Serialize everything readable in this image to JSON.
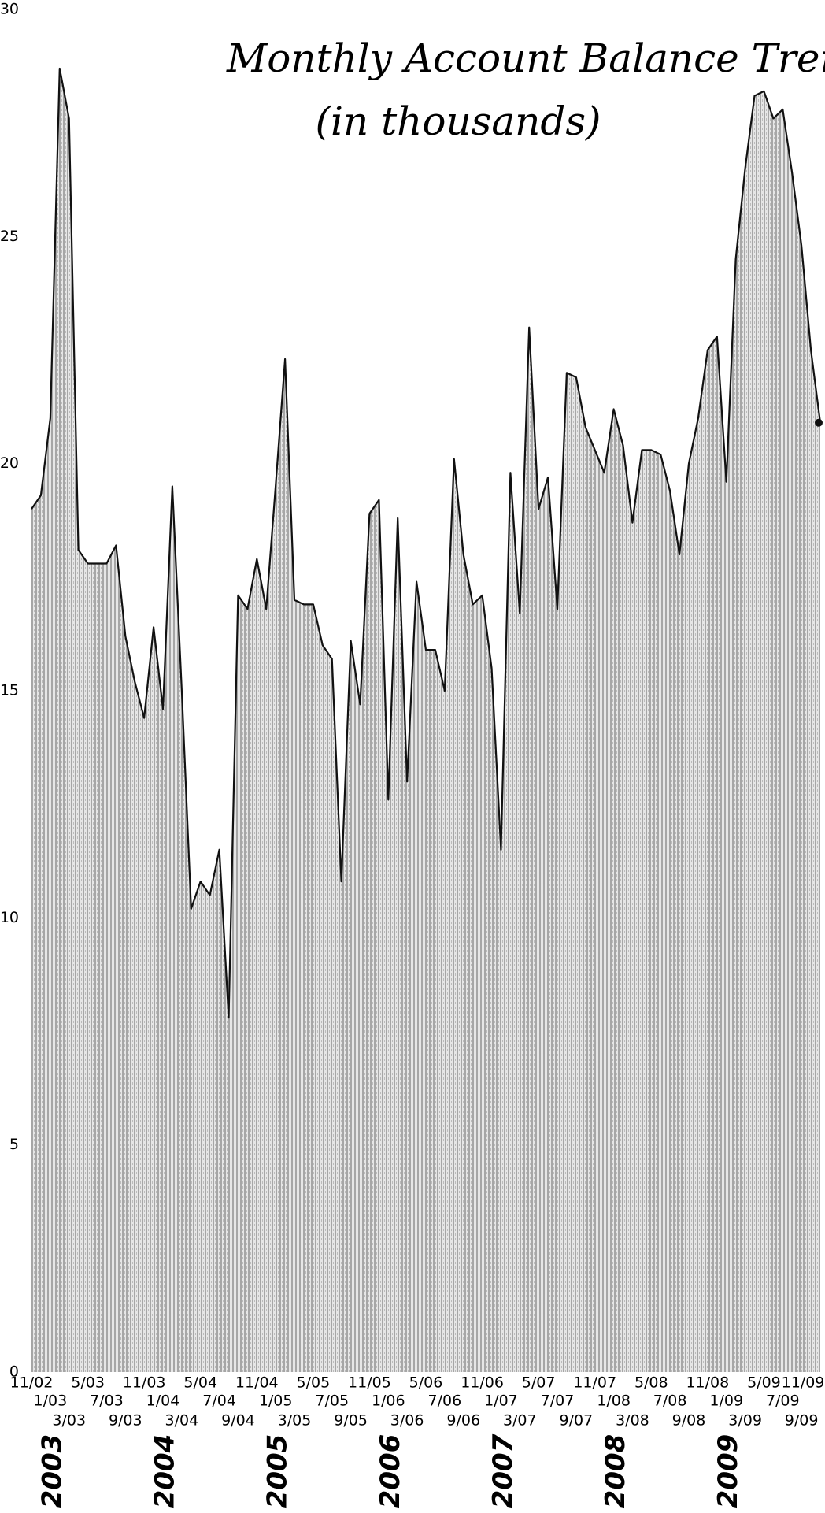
{
  "chart_data": {
    "type": "area",
    "title": "Monthly Account Balance Trend",
    "subtitle": "(in thousands)",
    "categories": [
      "11/02",
      null,
      "1/03",
      null,
      "3/03",
      null,
      "5/03",
      null,
      "7/03",
      null,
      "9/03",
      null,
      "11/03",
      null,
      "1/04",
      null,
      "3/04",
      null,
      "5/04",
      null,
      "7/04",
      null,
      "9/04",
      null,
      "11/04",
      null,
      "1/05",
      null,
      "3/05",
      null,
      "5/05",
      null,
      "7/05",
      null,
      "9/05",
      null,
      "11/05",
      null,
      "1/06",
      null,
      "3/06",
      null,
      "5/06",
      null,
      "7/06",
      null,
      "9/06",
      null,
      "11/06",
      null,
      "1/07",
      null,
      "3/07",
      null,
      "5/07",
      null,
      "7/07",
      null,
      "9/07",
      null,
      "11/07",
      null,
      "1/08",
      null,
      "3/08",
      null,
      "5/08",
      null,
      "7/08",
      null,
      "9/08",
      null,
      "11/08",
      null,
      "1/09",
      null,
      "3/09",
      null,
      "5/09",
      null,
      "7/09",
      null,
      "9/09",
      null,
      "11/09"
    ],
    "values": [
      19,
      19.3,
      21,
      28.7,
      27.6,
      18.1,
      17.8,
      17.8,
      17.8,
      18.2,
      16.2,
      15.2,
      14.4,
      16.4,
      14.6,
      19.5,
      15,
      10.2,
      10.8,
      10.5,
      11.5,
      7.8,
      17.1,
      16.8,
      17.9,
      16.8,
      19.5,
      22.3,
      17,
      16.9,
      16.9,
      16,
      15.7,
      10.8,
      16.1,
      14.7,
      18.9,
      19.2,
      12.6,
      18.8,
      13,
      17.4,
      15.9,
      15.9,
      15,
      20.1,
      18,
      16.9,
      17.1,
      15.5,
      11.5,
      19.8,
      16.7,
      23,
      19,
      19.7,
      16.8,
      22,
      21.9,
      20.8,
      20.3,
      19.8,
      21.2,
      20.4,
      18.7,
      20.3,
      20.3,
      20.2,
      19.4,
      18,
      20,
      21,
      22.5,
      22.8,
      19.6,
      24.5,
      26.5,
      28.1,
      28.2,
      27.6,
      27.8,
      26.4,
      24.8,
      22.5,
      20.9
    ],
    "color": "#555555",
    "ylim": [
      0,
      30
    ],
    "yticks": [
      0,
      5,
      10,
      15,
      20,
      25,
      30
    ],
    "grid": false,
    "annotations": [
      "2003",
      "2004",
      "2005",
      "2006",
      "2007",
      "2008",
      "2009"
    ]
  }
}
